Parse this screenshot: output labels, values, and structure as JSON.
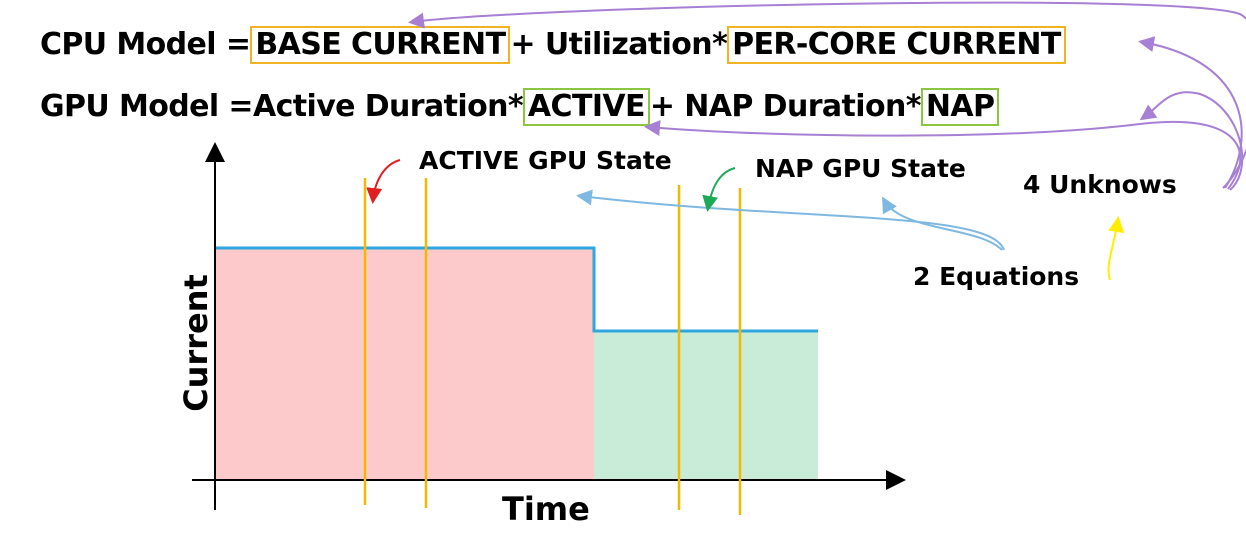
{
  "equations": {
    "cpu": {
      "prefix": "CPU Model = ",
      "term1": "BASE CURRENT",
      "mid": " + Utilization*",
      "term2": "PER-CORE CURRENT"
    },
    "gpu": {
      "prefix": "GPU Model = ",
      "mid1": "Active Duration*",
      "term1": "ACTIVE",
      "mid2": " + NAP Duration*",
      "term2": "NAP"
    }
  },
  "annotations": {
    "active_state": "ACTIVE GPU State",
    "nap_state": "NAP GPU State",
    "unknowns": "4 Unknows",
    "equations": "2 Equations"
  },
  "chart": {
    "xlabel": "Time",
    "ylabel": "Current"
  },
  "colors": {
    "cpu_box": "#f0b323",
    "gpu_box": "#8cc63f",
    "active_fill": "#fccaca",
    "nap_fill": "#c9ecd8",
    "current_line": "#2ea7e0",
    "sample_line": "#f5b800",
    "arrow_purple": "#a77fd4",
    "arrow_blue": "#7fb8e0",
    "arrow_red": "#e02020",
    "arrow_green": "#1faa55",
    "arrow_yellow": "#ffee00"
  }
}
